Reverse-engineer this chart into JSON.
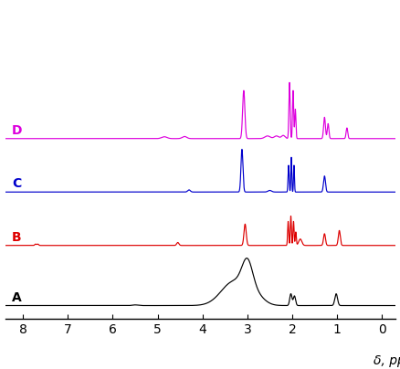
{
  "xlabel": "δ, ppm",
  "xlim": [
    8.4,
    -0.3
  ],
  "xticks": [
    8,
    7,
    6,
    5,
    4,
    3,
    2,
    1,
    0
  ],
  "colors": {
    "A": "#000000",
    "B": "#dd0000",
    "C": "#0000cc",
    "D": "#dd00dd"
  },
  "labels": {
    "A": "A",
    "B": "B",
    "C": "C",
    "D": "D"
  },
  "offsets": {
    "A": 0.0,
    "B": 0.18,
    "C": 0.34,
    "D": 0.5
  },
  "background": "#ffffff",
  "figsize": [
    4.39,
    4.04
  ],
  "dpi": 100
}
